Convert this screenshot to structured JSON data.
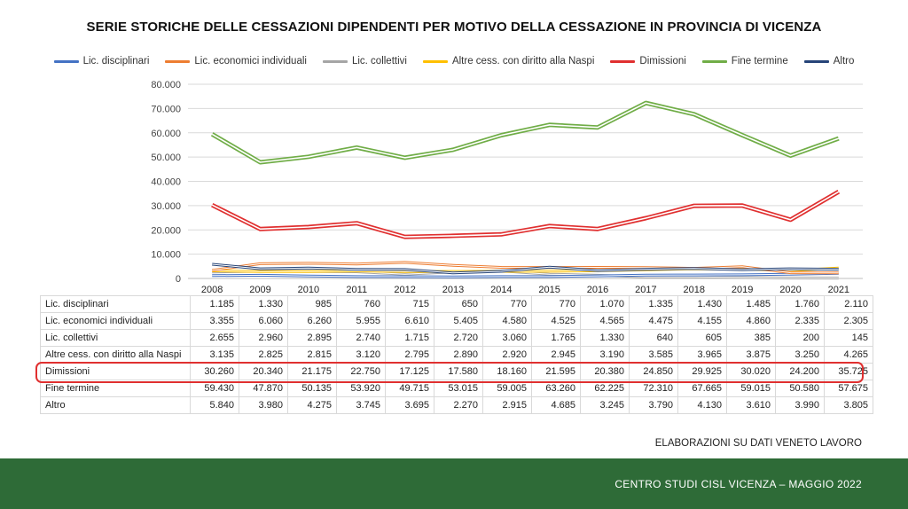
{
  "title": "SERIE STORICHE DELLE CESSAZIONI DIPENDENTI PER MOTIVO DELLA CESSAZIONE IN PROVINCIA DI VICENZA",
  "source": "ELABORAZIONI SU DATI VENETO LAVORO",
  "footer": "CENTRO STUDI CISL VICENZA – MAGGIO 2022",
  "colors": {
    "lic_disciplinari": "#4472c4",
    "lic_economici": "#ed7d31",
    "lic_collettivi": "#a5a5a5",
    "altre_cess": "#ffc000",
    "dimissioni": "#e03030",
    "fine_termine": "#70ad47",
    "altro": "#264478",
    "highlight": "#e03030",
    "footer_bg": "#2e6b37"
  },
  "chart_data": {
    "type": "line",
    "categories": [
      "2008",
      "2009",
      "2010",
      "2011",
      "2012",
      "2013",
      "2014",
      "2015",
      "2016",
      "2017",
      "2018",
      "2019",
      "2020",
      "2021"
    ],
    "ylim": [
      0,
      80000
    ],
    "yticks": [
      "0",
      "10.000",
      "20.000",
      "30.000",
      "40.000",
      "50.000",
      "60.000",
      "70.000",
      "80.000"
    ],
    "grid": "horizontal",
    "legend": "top",
    "series": [
      {
        "name": "Lic. disciplinari",
        "color": "#4472c4",
        "values": [
          1185,
          1330,
          985,
          760,
          715,
          650,
          770,
          770,
          1070,
          1335,
          1430,
          1485,
          1760,
          2110
        ],
        "labels": [
          "1.185",
          "1.330",
          "985",
          "760",
          "715",
          "650",
          "770",
          "770",
          "1.070",
          "1.335",
          "1.430",
          "1.485",
          "1.760",
          "2.110"
        ]
      },
      {
        "name": "Lic. economici individuali",
        "color": "#ed7d31",
        "values": [
          3355,
          6060,
          6260,
          5955,
          6610,
          5405,
          4580,
          4525,
          4565,
          4475,
          4155,
          4860,
          2335,
          2305
        ],
        "labels": [
          "3.355",
          "6.060",
          "6.260",
          "5.955",
          "6.610",
          "5.405",
          "4.580",
          "4.525",
          "4.565",
          "4.475",
          "4.155",
          "4.860",
          "2.335",
          "2.305"
        ]
      },
      {
        "name": "Lic. collettivi",
        "color": "#a5a5a5",
        "values": [
          2655,
          2960,
          2895,
          2740,
          1715,
          2720,
          3060,
          1765,
          1330,
          640,
          605,
          385,
          200,
          145
        ],
        "labels": [
          "2.655",
          "2.960",
          "2.895",
          "2.740",
          "1.715",
          "2.720",
          "3.060",
          "1.765",
          "1.330",
          "640",
          "605",
          "385",
          "200",
          "145"
        ]
      },
      {
        "name": "Altre cess. con diritto alla Naspi",
        "color": "#ffc000",
        "values": [
          3135,
          2825,
          2815,
          3120,
          2795,
          2890,
          2920,
          2945,
          3190,
          3585,
          3965,
          3875,
          3250,
          4265
        ],
        "labels": [
          "3.135",
          "2.825",
          "2.815",
          "3.120",
          "2.795",
          "2.890",
          "2.920",
          "2.945",
          "3.190",
          "3.585",
          "3.965",
          "3.875",
          "3.250",
          "4.265"
        ]
      },
      {
        "name": "Dimissioni",
        "color": "#e03030",
        "values": [
          30260,
          20340,
          21175,
          22750,
          17125,
          17580,
          18160,
          21595,
          20380,
          24850,
          29925,
          30020,
          24200,
          35725
        ],
        "labels": [
          "30.260",
          "20.340",
          "21.175",
          "22.750",
          "17.125",
          "17.580",
          "18.160",
          "21.595",
          "20.380",
          "24.850",
          "29.925",
          "30.020",
          "24.200",
          "35.725"
        ]
      },
      {
        "name": "Fine termine",
        "color": "#70ad47",
        "values": [
          59430,
          47870,
          50135,
          53920,
          49715,
          53015,
          59005,
          63260,
          62225,
          72310,
          67665,
          59015,
          50580,
          57675
        ],
        "labels": [
          "59.430",
          "47.870",
          "50.135",
          "53.920",
          "49.715",
          "53.015",
          "59.005",
          "63.260",
          "62.225",
          "72.310",
          "67.665",
          "59.015",
          "50.580",
          "57.675"
        ]
      },
      {
        "name": "Altro",
        "color": "#264478",
        "values": [
          5840,
          3980,
          4275,
          3745,
          3695,
          2270,
          2915,
          4685,
          3245,
          3790,
          4130,
          3610,
          3990,
          3805
        ],
        "labels": [
          "5.840",
          "3.980",
          "4.275",
          "3.745",
          "3.695",
          "2.270",
          "2.915",
          "4.685",
          "3.245",
          "3.790",
          "4.130",
          "3.610",
          "3.990",
          "3.805"
        ]
      }
    ]
  }
}
